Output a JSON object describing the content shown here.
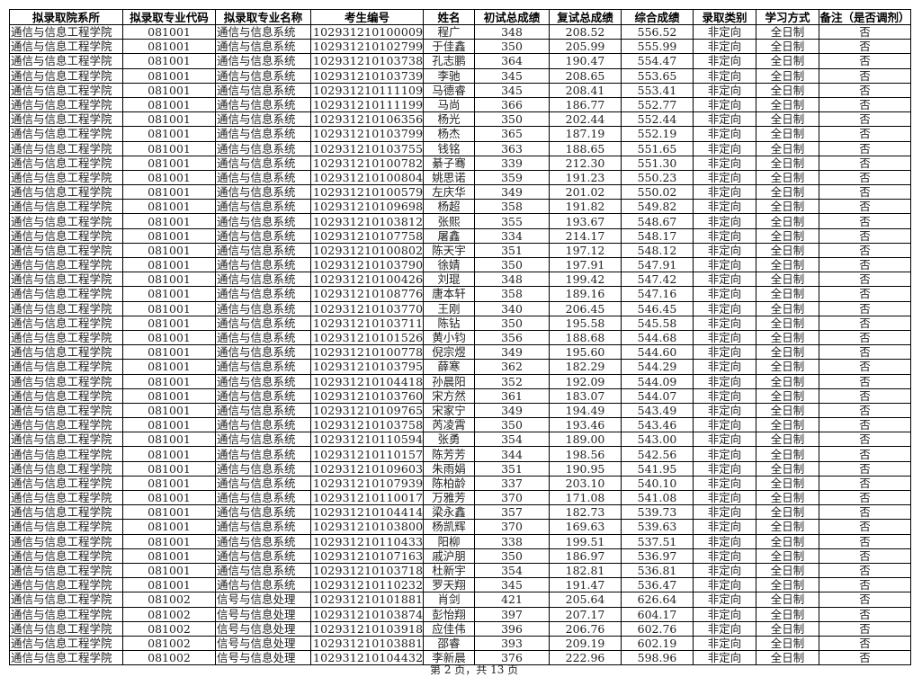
{
  "headers": [
    "拟录取院系所",
    "拟录取专业代码",
    "拟录取专业名称",
    "考生编号",
    "姓名",
    "初试总成绩",
    "复试总成绩",
    "综合成绩",
    "录取类别",
    "学习方式",
    "备注（是否调剂）"
  ],
  "rows": [
    [
      "通信与信息工程学院",
      "081001",
      "通信与信息系统",
      "102931210100009",
      "程广",
      "348",
      "208.52",
      "556.52",
      "非定向",
      "全日制",
      "否"
    ],
    [
      "通信与信息工程学院",
      "081001",
      "通信与信息系统",
      "102931210102799",
      "于佳鑫",
      "350",
      "205.99",
      "555.99",
      "非定向",
      "全日制",
      "否"
    ],
    [
      "通信与信息工程学院",
      "081001",
      "通信与信息系统",
      "102931210103738",
      "孔志鹏",
      "364",
      "190.47",
      "554.47",
      "非定向",
      "全日制",
      "否"
    ],
    [
      "通信与信息工程学院",
      "081001",
      "通信与信息系统",
      "102931210103739",
      "李驰",
      "345",
      "208.65",
      "553.65",
      "非定向",
      "全日制",
      "否"
    ],
    [
      "通信与信息工程学院",
      "081001",
      "通信与信息系统",
      "102931210111109",
      "马德睿",
      "345",
      "208.41",
      "553.41",
      "非定向",
      "全日制",
      "否"
    ],
    [
      "通信与信息工程学院",
      "081001",
      "通信与信息系统",
      "102931210111199",
      "马尚",
      "366",
      "186.77",
      "552.77",
      "非定向",
      "全日制",
      "否"
    ],
    [
      "通信与信息工程学院",
      "081001",
      "通信与信息系统",
      "102931210106356",
      "杨光",
      "350",
      "202.44",
      "552.44",
      "非定向",
      "全日制",
      "否"
    ],
    [
      "通信与信息工程学院",
      "081001",
      "通信与信息系统",
      "102931210103799",
      "杨杰",
      "365",
      "187.19",
      "552.19",
      "非定向",
      "全日制",
      "否"
    ],
    [
      "通信与信息工程学院",
      "081001",
      "通信与信息系统",
      "102931210103755",
      "钱铭",
      "363",
      "188.65",
      "551.65",
      "非定向",
      "全日制",
      "否"
    ],
    [
      "通信与信息工程学院",
      "081001",
      "通信与信息系统",
      "102931210100782",
      "綦子骞",
      "339",
      "212.30",
      "551.30",
      "非定向",
      "全日制",
      "否"
    ],
    [
      "通信与信息工程学院",
      "081001",
      "通信与信息系统",
      "102931210100804",
      "姚思诺",
      "359",
      "191.23",
      "550.23",
      "非定向",
      "全日制",
      "否"
    ],
    [
      "通信与信息工程学院",
      "081001",
      "通信与信息系统",
      "102931210100579",
      "左庆华",
      "349",
      "201.02",
      "550.02",
      "非定向",
      "全日制",
      "否"
    ],
    [
      "通信与信息工程学院",
      "081001",
      "通信与信息系统",
      "102931210109698",
      "杨超",
      "358",
      "191.82",
      "549.82",
      "非定向",
      "全日制",
      "否"
    ],
    [
      "通信与信息工程学院",
      "081001",
      "通信与信息系统",
      "102931210103812",
      "张熙",
      "355",
      "193.67",
      "548.67",
      "非定向",
      "全日制",
      "否"
    ],
    [
      "通信与信息工程学院",
      "081001",
      "通信与信息系统",
      "102931210107758",
      "屠鑫",
      "334",
      "214.17",
      "548.17",
      "非定向",
      "全日制",
      "否"
    ],
    [
      "通信与信息工程学院",
      "081001",
      "通信与信息系统",
      "102931210100802",
      "陈天宇",
      "351",
      "197.12",
      "548.12",
      "非定向",
      "全日制",
      "否"
    ],
    [
      "通信与信息工程学院",
      "081001",
      "通信与信息系统",
      "102931210103790",
      "徐婧",
      "350",
      "197.91",
      "547.91",
      "非定向",
      "全日制",
      "否"
    ],
    [
      "通信与信息工程学院",
      "081001",
      "通信与信息系统",
      "102931210100426",
      "刘琨",
      "348",
      "199.42",
      "547.42",
      "非定向",
      "全日制",
      "否"
    ],
    [
      "通信与信息工程学院",
      "081001",
      "通信与信息系统",
      "102931210108776",
      "唐本轩",
      "358",
      "189.16",
      "547.16",
      "非定向",
      "全日制",
      "否"
    ],
    [
      "通信与信息工程学院",
      "081001",
      "通信与信息系统",
      "102931210103770",
      "王刚",
      "340",
      "206.45",
      "546.45",
      "非定向",
      "全日制",
      "否"
    ],
    [
      "通信与信息工程学院",
      "081001",
      "通信与信息系统",
      "102931210103711",
      "陈钻",
      "350",
      "195.58",
      "545.58",
      "非定向",
      "全日制",
      "否"
    ],
    [
      "通信与信息工程学院",
      "081001",
      "通信与信息系统",
      "102931210101526",
      "黄小钧",
      "356",
      "188.68",
      "544.68",
      "非定向",
      "全日制",
      "否"
    ],
    [
      "通信与信息工程学院",
      "081001",
      "通信与信息系统",
      "102931210100778",
      "倪宗煜",
      "349",
      "195.60",
      "544.60",
      "非定向",
      "全日制",
      "否"
    ],
    [
      "通信与信息工程学院",
      "081001",
      "通信与信息系统",
      "102931210103795",
      "薛寒",
      "362",
      "182.29",
      "544.29",
      "非定向",
      "全日制",
      "否"
    ],
    [
      "通信与信息工程学院",
      "081001",
      "通信与信息系统",
      "102931210104418",
      "孙晨阳",
      "352",
      "192.09",
      "544.09",
      "非定向",
      "全日制",
      "否"
    ],
    [
      "通信与信息工程学院",
      "081001",
      "通信与信息系统",
      "102931210103760",
      "宋方然",
      "361",
      "183.07",
      "544.07",
      "非定向",
      "全日制",
      "否"
    ],
    [
      "通信与信息工程学院",
      "081001",
      "通信与信息系统",
      "102931210109765",
      "宋家宁",
      "349",
      "194.49",
      "543.49",
      "非定向",
      "全日制",
      "否"
    ],
    [
      "通信与信息工程学院",
      "081001",
      "通信与信息系统",
      "102931210103758",
      "芮凌霄",
      "350",
      "193.46",
      "543.46",
      "非定向",
      "全日制",
      "否"
    ],
    [
      "通信与信息工程学院",
      "081001",
      "通信与信息系统",
      "102931210110594",
      "张勇",
      "354",
      "189.00",
      "543.00",
      "非定向",
      "全日制",
      "否"
    ],
    [
      "通信与信息工程学院",
      "081001",
      "通信与信息系统",
      "102931210110157",
      "陈芳芳",
      "344",
      "198.56",
      "542.56",
      "非定向",
      "全日制",
      "否"
    ],
    [
      "通信与信息工程学院",
      "081001",
      "通信与信息系统",
      "102931210109603",
      "朱雨娟",
      "351",
      "190.95",
      "541.95",
      "非定向",
      "全日制",
      "否"
    ],
    [
      "通信与信息工程学院",
      "081001",
      "通信与信息系统",
      "102931210107939",
      "陈柏龄",
      "337",
      "203.10",
      "540.10",
      "非定向",
      "全日制",
      "否"
    ],
    [
      "通信与信息工程学院",
      "081001",
      "通信与信息系统",
      "102931210110017",
      "万雅芳",
      "370",
      "171.08",
      "541.08",
      "非定向",
      "全日制",
      "否"
    ],
    [
      "通信与信息工程学院",
      "081001",
      "通信与信息系统",
      "102931210104414",
      "梁永鑫",
      "357",
      "182.73",
      "539.73",
      "非定向",
      "全日制",
      "否"
    ],
    [
      "通信与信息工程学院",
      "081001",
      "通信与信息系统",
      "102931210103800",
      "杨凯辉",
      "370",
      "169.63",
      "539.63",
      "非定向",
      "全日制",
      "否"
    ],
    [
      "通信与信息工程学院",
      "081001",
      "通信与信息系统",
      "102931210110433",
      "阳柳",
      "338",
      "199.51",
      "537.51",
      "非定向",
      "全日制",
      "否"
    ],
    [
      "通信与信息工程学院",
      "081001",
      "通信与信息系统",
      "102931210107163",
      "戚沪朋",
      "350",
      "186.97",
      "536.97",
      "非定向",
      "全日制",
      "否"
    ],
    [
      "通信与信息工程学院",
      "081001",
      "通信与信息系统",
      "102931210103718",
      "杜新宇",
      "354",
      "182.81",
      "536.81",
      "非定向",
      "全日制",
      "否"
    ],
    [
      "通信与信息工程学院",
      "081001",
      "通信与信息系统",
      "102931210110232",
      "罗天翔",
      "345",
      "191.47",
      "536.47",
      "非定向",
      "全日制",
      "否"
    ],
    [
      "通信与信息工程学院",
      "081002",
      "信号与信息处理",
      "102931210101881",
      "肖剑",
      "421",
      "205.64",
      "626.64",
      "非定向",
      "全日制",
      "否"
    ],
    [
      "通信与信息工程学院",
      "081002",
      "信号与信息处理",
      "102931210103874",
      "彭怡翔",
      "397",
      "207.17",
      "604.17",
      "非定向",
      "全日制",
      "否"
    ],
    [
      "通信与信息工程学院",
      "081002",
      "信号与信息处理",
      "102931210103918",
      "应佳伟",
      "396",
      "206.76",
      "602.76",
      "非定向",
      "全日制",
      "否"
    ],
    [
      "通信与信息工程学院",
      "081002",
      "信号与信息处理",
      "102931210103881",
      "邵睿",
      "393",
      "209.19",
      "602.19",
      "非定向",
      "全日制",
      "否"
    ],
    [
      "通信与信息工程学院",
      "081002",
      "信号与信息处理",
      "102931210104432",
      "李新晨",
      "376",
      "222.96",
      "598.96",
      "非定向",
      "全日制",
      "否"
    ]
  ],
  "footer": "第 2 页，共 13 页"
}
